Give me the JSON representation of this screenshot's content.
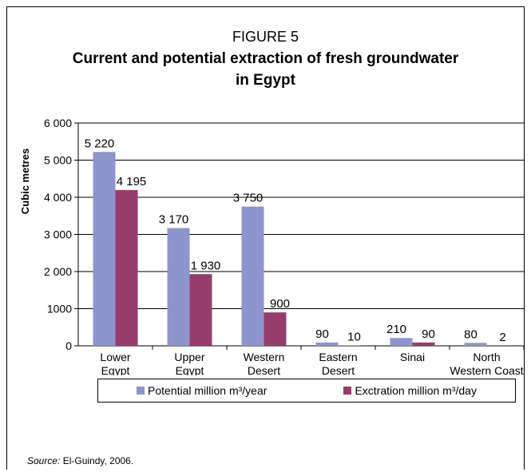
{
  "figure": {
    "label": "FIGURE 5",
    "title_line1": "Current and potential extraction of fresh groundwater",
    "title_line2": "in Egypt"
  },
  "legend": {
    "potential_text": "Potential million m³/year",
    "extraction_text": "Exctration million m³/day"
  },
  "source": {
    "label": "Source:",
    "text": " El-Guindy, 2006."
  },
  "colors": {
    "potential": "#8e95cc",
    "extraction": "#963d6b"
  },
  "chart_data": {
    "type": "bar",
    "title": "Current and potential extraction of fresh groundwater in Egypt",
    "ylabel": "Cubic metres",
    "xlabel": "",
    "ylim": [
      0,
      6000
    ],
    "ytick_values": [
      0,
      1000,
      2000,
      3000,
      4000,
      5000,
      6000
    ],
    "ytick_labels": [
      "0",
      "1000",
      "2 000",
      "3 000",
      "4 000",
      "5 000",
      "6 000"
    ],
    "categories": [
      [
        "Lower",
        "Egypt"
      ],
      [
        "Upper",
        "Egypt"
      ],
      [
        "Western",
        "Desert"
      ],
      [
        "Eastern",
        "Desert"
      ],
      [
        "Sinai"
      ],
      [
        "North",
        "Western Coast"
      ]
    ],
    "series": [
      {
        "name": "Potential million m³/year",
        "values": [
          5220,
          3170,
          3750,
          90,
          210,
          80
        ],
        "labels": [
          "5 220",
          "3 170",
          "3 750",
          "90",
          "210",
          "80"
        ]
      },
      {
        "name": "Exctration million m³/day",
        "values": [
          4195,
          1930,
          900,
          10,
          90,
          2
        ],
        "labels": [
          "4 195",
          "1 930",
          "900",
          "10",
          "90",
          "2"
        ]
      }
    ],
    "grid": true,
    "legend_position": "bottom"
  }
}
